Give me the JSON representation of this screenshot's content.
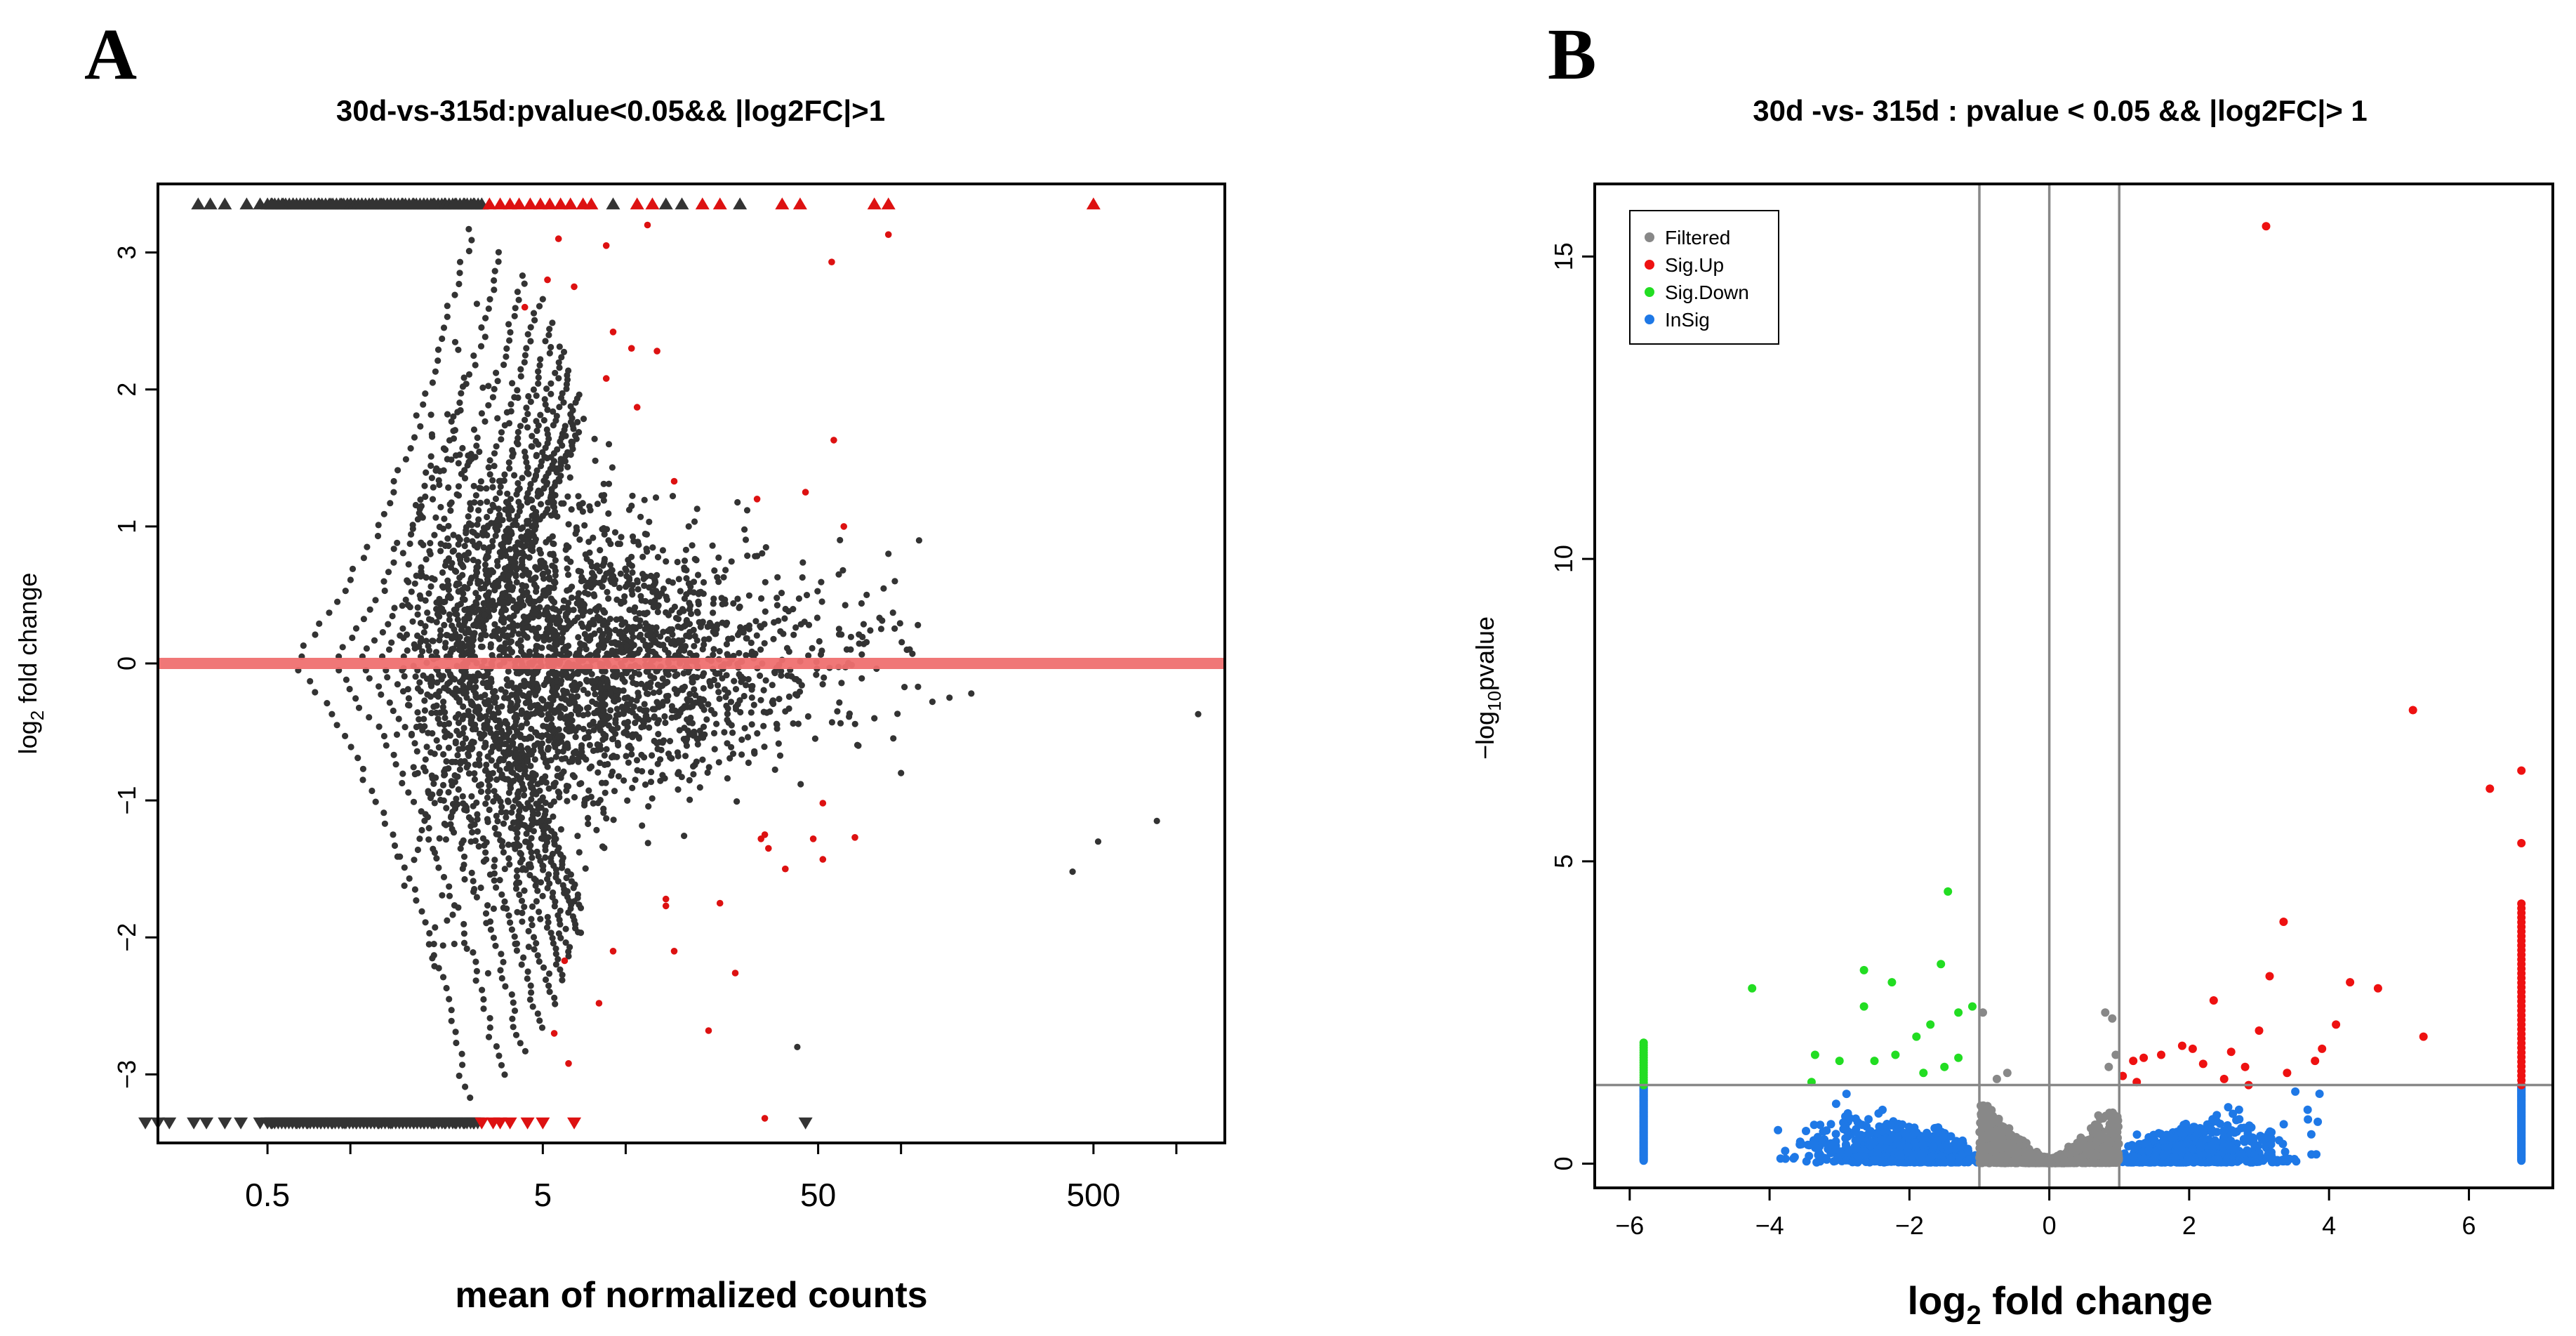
{
  "chart_data": [
    {
      "panel": "A",
      "type": "scatter",
      "title": "30d-vs-315d:pvalue<0.05&& |log2FC|>1",
      "xlabel": "mean of normalized counts",
      "ylabel": "log2 fold change",
      "ylabel_base": "log",
      "ylabel_sub": "2",
      "ylabel_rest": " fold change",
      "xscale": "log",
      "xlim": [
        0.2,
        1500
      ],
      "ylim": [
        -3.5,
        3.5
      ],
      "x_ticks": [
        0.5,
        5,
        50,
        500
      ],
      "x_tick_labels": [
        "0.5",
        "5",
        "50",
        "500"
      ],
      "y_ticks": [
        -3,
        -2,
        -1,
        0,
        1,
        2,
        3
      ],
      "y_tick_labels": [
        "−3",
        "−2",
        "−1",
        "0",
        "1",
        "2",
        "3"
      ],
      "hline": 0,
      "grid": false,
      "colors": {
        "points": "#333333",
        "significant": "#dd1111",
        "hline": "#f07070"
      },
      "clipped_max": 3.35,
      "clipped_min": -3.35,
      "significant_points": [
        [
          4.3,
          2.6
        ],
        [
          5.2,
          2.8
        ],
        [
          6.5,
          2.75
        ],
        [
          5.7,
          3.1
        ],
        [
          8.5,
          3.05
        ],
        [
          12,
          3.2
        ],
        [
          9,
          2.42
        ],
        [
          10.5,
          2.3
        ],
        [
          13,
          2.28
        ],
        [
          8.5,
          2.08
        ],
        [
          11,
          1.87
        ],
        [
          56,
          2.93
        ],
        [
          90,
          3.13
        ],
        [
          57,
          1.63
        ],
        [
          15,
          1.33
        ],
        [
          30,
          1.2
        ],
        [
          45,
          1.25
        ],
        [
          62,
          1.0
        ],
        [
          32,
          -1.25
        ],
        [
          31,
          -1.28
        ],
        [
          33,
          -1.35
        ],
        [
          52,
          -1.02
        ],
        [
          48,
          -1.28
        ],
        [
          68,
          -1.27
        ],
        [
          38,
          -1.5
        ],
        [
          52,
          -1.43
        ],
        [
          14,
          -1.72
        ],
        [
          14,
          -1.77
        ],
        [
          22,
          -1.75
        ],
        [
          15,
          -2.1
        ],
        [
          6,
          -2.17
        ],
        [
          9,
          -2.1
        ],
        [
          25,
          -2.26
        ],
        [
          8,
          -2.48
        ],
        [
          5.5,
          -2.7
        ],
        [
          20,
          -2.68
        ],
        [
          6.2,
          -2.92
        ],
        [
          32,
          -3.32
        ]
      ],
      "clipped_top": {
        "grey": [
          0.28,
          0.31,
          0.35,
          0.42,
          0.47,
          0.52,
          0.57,
          0.62,
          0.7,
          0.77,
          0.85,
          0.93,
          1.0,
          1.1,
          1.2,
          1.3,
          1.4,
          1.55,
          1.7,
          1.85,
          2.0,
          2.2,
          2.4,
          2.6,
          2.8,
          3.0,
          9.0,
          14,
          16,
          26
        ],
        "red": [
          3.2,
          3.5,
          3.8,
          4.1,
          4.5,
          4.9,
          5.3,
          5.8,
          6.3,
          7.0,
          7.5,
          11,
          12.5,
          19,
          22,
          37,
          43,
          80,
          90,
          500
        ]
      },
      "clipped_bottom": {
        "grey": [
          0.18,
          0.2,
          0.22,
          0.27,
          0.3,
          0.35,
          0.4,
          0.47,
          0.52,
          0.58,
          0.64,
          0.7,
          0.78,
          0.86,
          0.95,
          1.05,
          1.15,
          1.27,
          1.4,
          1.55,
          1.7,
          1.85,
          2.0,
          2.2,
          2.4,
          2.6,
          2.8,
          45
        ],
        "red": [
          3.0,
          3.3,
          3.5,
          3.8,
          4.4,
          5.0,
          6.5
        ]
      }
    },
    {
      "panel": "B",
      "type": "scatter",
      "title": "30d -vs- 315d : pvalue < 0.05 && |log2FC|> 1",
      "xlabel": "log2 fold change",
      "xlabel_base": "log",
      "xlabel_sub": "2",
      "xlabel_rest": " fold change",
      "ylabel": "-log10pvalue",
      "ylabel_base": "−log",
      "ylabel_sub": "10",
      "ylabel_rest": "pvalue",
      "xlim": [
        -6.5,
        7.2
      ],
      "ylim": [
        -0.4,
        16.2
      ],
      "x_ticks": [
        -6,
        -4,
        -2,
        0,
        2,
        4,
        6
      ],
      "x_tick_labels": [
        "−6",
        "−4",
        "−2",
        "0",
        "2",
        "4",
        "6"
      ],
      "y_ticks": [
        0,
        5,
        10,
        15
      ],
      "y_tick_labels": [
        "0",
        "5",
        "10",
        "15"
      ],
      "vlines": [
        -1,
        0,
        1
      ],
      "hline": 1.3,
      "grid": false,
      "legend": {
        "position": "top-left",
        "items": [
          {
            "label": "Filtered",
            "color": "#888888"
          },
          {
            "label": "Sig.Up",
            "color": "#ee1111"
          },
          {
            "label": "Sig.Down",
            "color": "#22dd22"
          },
          {
            "label": "InSig",
            "color": "#1e78e6"
          }
        ]
      },
      "sig_up": [
        [
          3.1,
          15.5
        ],
        [
          5.2,
          7.5
        ],
        [
          6.3,
          6.2
        ],
        [
          6.75,
          6.5
        ],
        [
          6.75,
          5.3
        ],
        [
          3.35,
          4.0
        ],
        [
          4.7,
          2.9
        ],
        [
          4.3,
          3.0
        ],
        [
          3.15,
          3.1
        ],
        [
          4.1,
          2.3
        ],
        [
          2.35,
          2.7
        ],
        [
          5.35,
          2.1
        ],
        [
          3.0,
          2.2
        ],
        [
          2.6,
          1.85
        ],
        [
          1.9,
          1.95
        ],
        [
          2.05,
          1.9
        ],
        [
          1.6,
          1.8
        ],
        [
          1.35,
          1.75
        ],
        [
          1.2,
          1.7
        ],
        [
          2.2,
          1.65
        ],
        [
          2.8,
          1.6
        ],
        [
          3.4,
          1.5
        ],
        [
          3.8,
          1.7
        ],
        [
          3.9,
          1.9
        ],
        [
          2.5,
          1.4
        ],
        [
          2.85,
          1.3
        ],
        [
          1.05,
          1.45
        ],
        [
          1.25,
          1.35
        ]
      ],
      "sig_down": [
        [
          -1.45,
          4.5
        ],
        [
          -4.25,
          2.9
        ],
        [
          -3.0,
          1.7
        ],
        [
          -2.65,
          3.2
        ],
        [
          -2.25,
          3.0
        ],
        [
          -1.55,
          3.3
        ],
        [
          -2.65,
          2.6
        ],
        [
          -1.3,
          2.5
        ],
        [
          -1.1,
          2.6
        ],
        [
          -1.9,
          2.1
        ],
        [
          -1.7,
          2.3
        ],
        [
          -3.35,
          1.8
        ],
        [
          -2.5,
          1.7
        ],
        [
          -2.2,
          1.8
        ],
        [
          -1.3,
          1.75
        ],
        [
          -1.5,
          1.6
        ],
        [
          -1.8,
          1.5
        ],
        [
          -3.4,
          1.35
        ]
      ],
      "sig_down_edge": {
        "x": -5.8,
        "y_range": [
          1.3,
          2.0
        ]
      },
      "sig_up_edge": {
        "x": 6.75,
        "y_range": [
          1.3,
          4.3
        ]
      },
      "insig_edges": {
        "x": [
          -5.8,
          6.75
        ],
        "y_range": [
          0.05,
          1.3
        ]
      }
    }
  ],
  "labels": {
    "panel_a": "A",
    "panel_b": "B"
  }
}
